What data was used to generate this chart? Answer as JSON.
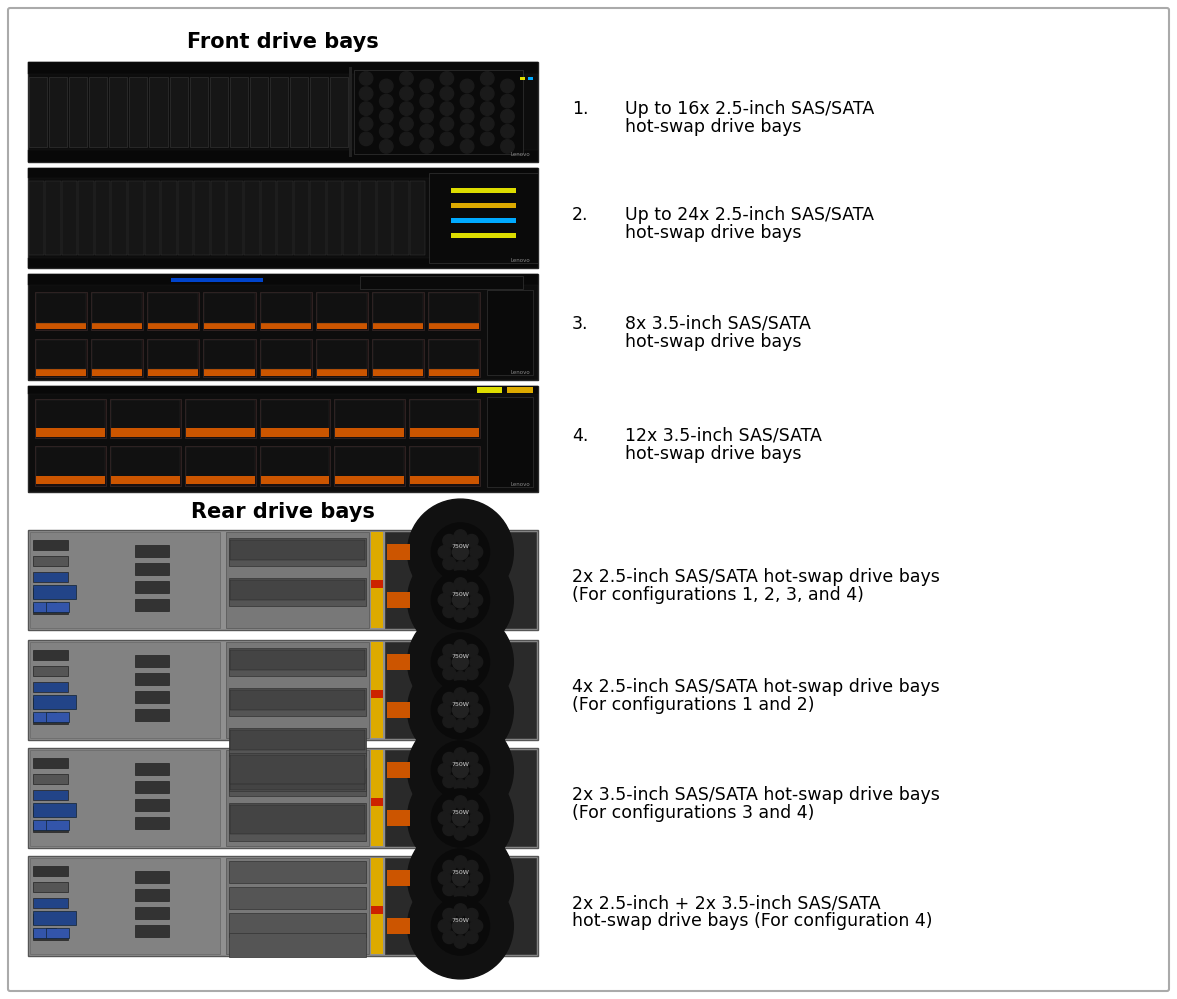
{
  "title_front": "Front drive bays",
  "title_rear": "Rear drive bays",
  "background_color": "#ffffff",
  "border_color": "#aaaaaa",
  "front_items": [
    {
      "number": "1.",
      "line1": "Up to 16x 2.5-inch SAS/SATA",
      "line2": "hot-swap drive bays"
    },
    {
      "number": "2.",
      "line1": "Up to 24x 2.5-inch SAS/SATA",
      "line2": "hot-swap drive bays"
    },
    {
      "number": "3.",
      "line1": "8x 3.5-inch SAS/SATA",
      "line2": "hot-swap drive bays"
    },
    {
      "number": "4.",
      "line1": "12x 3.5-inch SAS/SATA",
      "line2": "hot-swap drive bays"
    }
  ],
  "rear_items": [
    {
      "line1": "2x 2.5-inch SAS/SATA hot-swap drive bays",
      "line2": "(For configurations 1, 2, 3, and 4)"
    },
    {
      "line1": "4x 2.5-inch SAS/SATA hot-swap drive bays",
      "line2": "(For configurations 1 and 2)"
    },
    {
      "line1": "2x 3.5-inch SAS/SATA hot-swap drive bays",
      "line2": "(For configurations 3 and 4)"
    },
    {
      "line1": "2x 2.5-inch + 2x 3.5-inch SAS/SATA",
      "line2": "hot-swap drive bays (For configuration 4)"
    }
  ],
  "title_fontsize": 15,
  "item_fontsize": 12.5,
  "number_fontsize": 12.5
}
